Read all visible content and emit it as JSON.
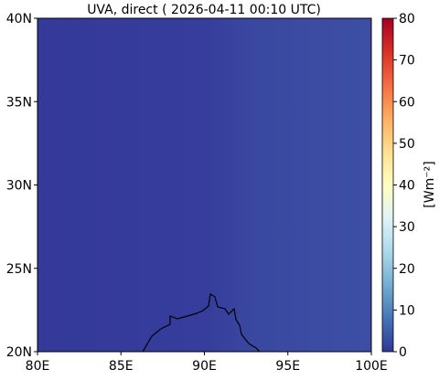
{
  "map": {
    "title": "UVA, direct ( 2026-04-11 00:10 UTC)",
    "xlim": [
      80,
      100
    ],
    "ylim": [
      20,
      40
    ],
    "xticks": [
      {
        "value": 80,
        "label": "80E"
      },
      {
        "value": 85,
        "label": "85E"
      },
      {
        "value": 90,
        "label": "90E"
      },
      {
        "value": 95,
        "label": "95E"
      },
      {
        "value": 100,
        "label": "100E"
      }
    ],
    "yticks": [
      {
        "value": 20,
        "label": "20N"
      },
      {
        "value": 25,
        "label": "25N"
      },
      {
        "value": 30,
        "label": "30N"
      },
      {
        "value": 35,
        "label": "35N"
      },
      {
        "value": 40,
        "label": "40N"
      }
    ]
  },
  "colorbar": {
    "label": "[Wm⁻²]",
    "lim": [
      0,
      80
    ],
    "ticks": [
      0,
      10,
      20,
      30,
      40,
      50,
      60,
      70,
      80
    ],
    "colors": [
      "#313695",
      "#4575b4",
      "#74add1",
      "#abd9e9",
      "#e0f3f8",
      "#ffffbf",
      "#fee090",
      "#fdae61",
      "#f46d43",
      "#d73027",
      "#a50026"
    ]
  }
}
